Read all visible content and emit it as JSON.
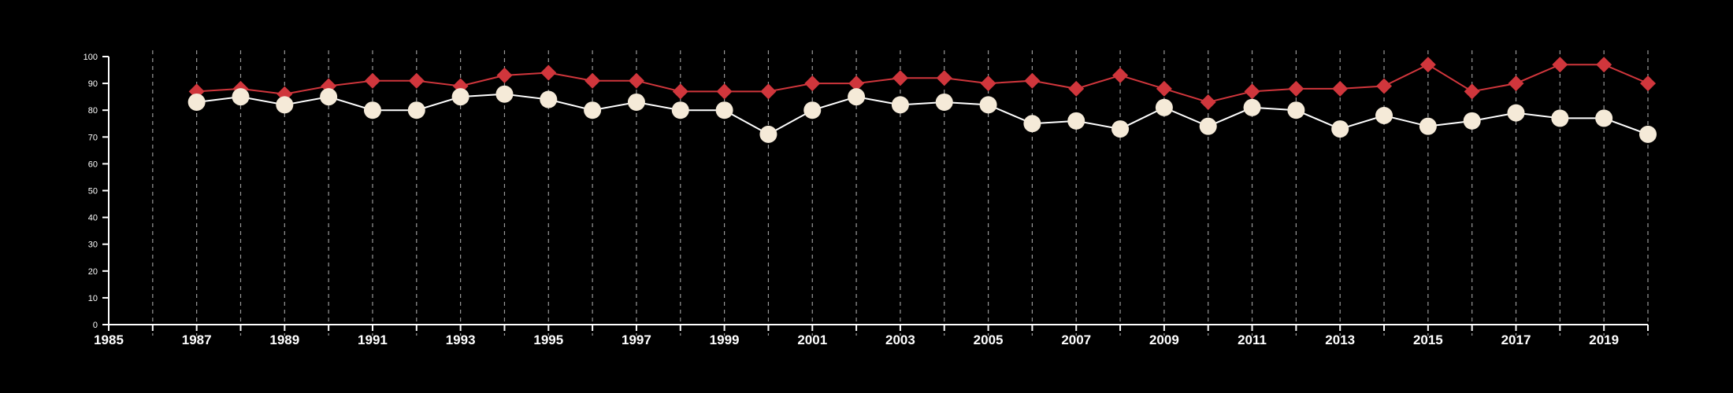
{
  "chart_data": {
    "type": "line",
    "title": "",
    "xlabel": "",
    "ylabel": "",
    "xlim": [
      1985,
      2020
    ],
    "ylim": [
      0,
      100
    ],
    "x_ticks": [
      "1985",
      "1987",
      "1989",
      "1991",
      "1993",
      "1995",
      "1997",
      "1999",
      "2001",
      "2003",
      "2005",
      "2007",
      "2009",
      "2011",
      "2013",
      "2015",
      "2017",
      "2019"
    ],
    "y_ticks": [
      "0",
      "10",
      "20",
      "30",
      "40",
      "50",
      "60",
      "70",
      "80",
      "90",
      "100"
    ],
    "grid": "vertical dashed lines at every year",
    "legend": "none",
    "x": [
      1987,
      1988,
      1989,
      1990,
      1991,
      1992,
      1993,
      1994,
      1995,
      1996,
      1997,
      1998,
      1999,
      2000,
      2001,
      2002,
      2003,
      2004,
      2005,
      2006,
      2007,
      2008,
      2009,
      2010,
      2011,
      2012,
      2013,
      2014,
      2015,
      2016,
      2017,
      2018,
      2019,
      2020
    ],
    "series": [
      {
        "color": "#d0363c",
        "marker": "diamond",
        "values": [
          87,
          88,
          86,
          89,
          91,
          91,
          89,
          93,
          94,
          91,
          91,
          87,
          87,
          87,
          90,
          90,
          92,
          92,
          90,
          91,
          88,
          93,
          88,
          83,
          87,
          88,
          88,
          89,
          97,
          87,
          90,
          97,
          97,
          90
        ]
      },
      {
        "color": "#f5ead8",
        "line_color": "#ffffff",
        "marker": "circle",
        "values": [
          83,
          85,
          82,
          85,
          80,
          80,
          85,
          86,
          84,
          80,
          83,
          80,
          80,
          71,
          80,
          85,
          82,
          83,
          82,
          75,
          76,
          73,
          81,
          74,
          81,
          80,
          73,
          78,
          74,
          76,
          79,
          77,
          77,
          71
        ]
      }
    ]
  }
}
